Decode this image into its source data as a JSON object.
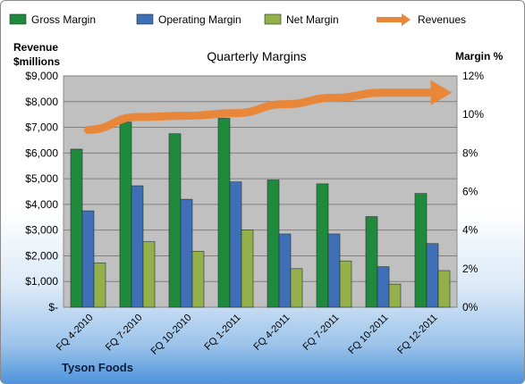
{
  "footer_text": "Tyson Foods",
  "chart_data": {
    "type": "bar",
    "title": "Quarterly Margins",
    "ylabel_left": [
      "Revenue",
      "$millions"
    ],
    "ylabel_right": "Margin %",
    "categories": [
      "FQ 4-2010",
      "FQ 7-2010",
      "FQ 10-2010",
      "FQ 1-2011",
      "FQ 4-2011",
      "FQ 7-2011",
      "FQ 10-2011",
      "FQ 12-2011"
    ],
    "series": [
      {
        "name": "Gross Margin",
        "type": "bar",
        "axis": "right",
        "color": "#1f8a3c",
        "values": [
          8.2,
          9.6,
          9.0,
          9.8,
          6.6,
          6.4,
          4.7,
          5.9
        ]
      },
      {
        "name": "Operating Margin",
        "type": "bar",
        "axis": "right",
        "color": "#3f6fb6",
        "values": [
          5.0,
          6.3,
          5.6,
          6.5,
          3.8,
          3.8,
          2.1,
          3.3
        ]
      },
      {
        "name": "Net Margin",
        "type": "bar",
        "axis": "right",
        "color": "#93b04a",
        "values": [
          2.3,
          3.4,
          2.9,
          4.0,
          2.0,
          2.4,
          1.2,
          1.9
        ]
      },
      {
        "name": "Revenues",
        "type": "line",
        "axis": "left",
        "color": "#e8873a",
        "values": [
          6900,
          7400,
          7450,
          7550,
          7900,
          8150,
          8350,
          8350
        ]
      }
    ],
    "y_left": {
      "min": 0,
      "max": 9000,
      "ticks": [
        "$-",
        "$1,000",
        "$2,000",
        "$3,000",
        "$4,000",
        "$5,000",
        "$6,000",
        "$7,000",
        "$8,000",
        "$9,000"
      ]
    },
    "y_right": {
      "min": 0,
      "max": 12,
      "ticks": [
        "0%",
        "2%",
        "4%",
        "6%",
        "8%",
        "10%",
        "12%"
      ]
    },
    "grid": true,
    "legend_position": "top",
    "plot_background": "#c0c0c0"
  }
}
